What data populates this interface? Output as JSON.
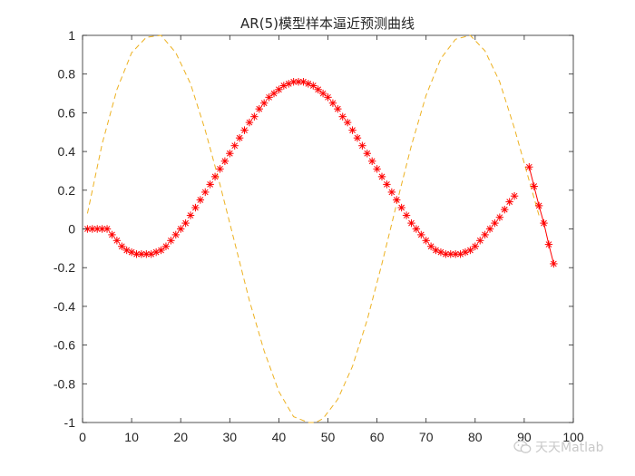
{
  "chart_data": {
    "type": "line",
    "title": "AR(5)模型样本逼近预测曲线",
    "xlabel": "",
    "ylabel": "",
    "xlim": [
      0,
      100
    ],
    "ylim": [
      -1,
      1
    ],
    "xticks": [
      0,
      10,
      20,
      30,
      40,
      50,
      60,
      70,
      80,
      90,
      100
    ],
    "yticks": [
      -1,
      -0.8,
      -0.6,
      -0.4,
      -0.2,
      0,
      0.2,
      0.4,
      0.6,
      0.8,
      1
    ],
    "ytick_labels": [
      "-1",
      "-0.8",
      "-0.6",
      "-0.4",
      "-0.2",
      "0",
      "0.2",
      "0.4",
      "0.6",
      "0.8",
      "1"
    ],
    "grid": false,
    "series": [
      {
        "style": "dashed-line",
        "color": "#EDB120",
        "x": [
          1,
          4,
          7,
          10,
          13,
          16,
          19,
          22,
          25,
          28,
          31,
          34,
          37,
          40,
          43,
          46,
          47.5,
          49,
          52,
          55,
          58,
          61,
          64,
          67,
          70,
          73,
          76,
          79,
          82,
          85,
          88,
          91,
          93
        ],
        "y": [
          0.08,
          0.44,
          0.72,
          0.91,
          0.99,
          1.0,
          0.91,
          0.75,
          0.51,
          0.23,
          -0.07,
          -0.37,
          -0.63,
          -0.84,
          -0.97,
          -1.0,
          -1.0,
          -0.98,
          -0.88,
          -0.71,
          -0.47,
          -0.18,
          0.13,
          0.43,
          0.69,
          0.88,
          0.98,
          1.0,
          0.92,
          0.76,
          0.52,
          0.25,
          0.07
        ]
      },
      {
        "style": "star-markers",
        "color": "#FF0000",
        "x": [
          1,
          2,
          3,
          4,
          5,
          6,
          7,
          8,
          9,
          10,
          11,
          12,
          13,
          14,
          15,
          16,
          17,
          18,
          19,
          20,
          21,
          22,
          23,
          24,
          25,
          26,
          27,
          28,
          29,
          30,
          31,
          32,
          33,
          34,
          35,
          36,
          37,
          38,
          39,
          40,
          41,
          42,
          43,
          44,
          45,
          46,
          47,
          48,
          49,
          50,
          51,
          52,
          53,
          54,
          55,
          56,
          57,
          58,
          59,
          60,
          61,
          62,
          63,
          64,
          65,
          66,
          67,
          68,
          69,
          70,
          71,
          72,
          73,
          74,
          75,
          76,
          77,
          78,
          79,
          80,
          81,
          82,
          83,
          84,
          85,
          86,
          87,
          88
        ],
        "y": [
          0,
          0,
          0,
          0,
          0,
          -0.03,
          -0.06,
          -0.09,
          -0.11,
          -0.12,
          -0.13,
          -0.13,
          -0.13,
          -0.13,
          -0.12,
          -0.11,
          -0.09,
          -0.06,
          -0.03,
          0,
          0.03,
          0.07,
          0.11,
          0.15,
          0.19,
          0.23,
          0.27,
          0.31,
          0.35,
          0.39,
          0.43,
          0.47,
          0.51,
          0.55,
          0.58,
          0.62,
          0.65,
          0.68,
          0.7,
          0.72,
          0.74,
          0.75,
          0.76,
          0.76,
          0.76,
          0.75,
          0.74,
          0.72,
          0.7,
          0.68,
          0.65,
          0.62,
          0.58,
          0.55,
          0.51,
          0.47,
          0.43,
          0.39,
          0.35,
          0.31,
          0.27,
          0.23,
          0.19,
          0.15,
          0.11,
          0.07,
          0.03,
          0,
          -0.03,
          -0.06,
          -0.09,
          -0.11,
          -0.12,
          -0.13,
          -0.13,
          -0.13,
          -0.13,
          -0.12,
          -0.11,
          -0.09,
          -0.06,
          -0.03,
          0,
          0.03,
          0.06,
          0.1,
          0.14,
          0.17
        ]
      },
      {
        "style": "solid-line-star-markers",
        "color": "#FF0000",
        "x": [
          91,
          92,
          93,
          94,
          95,
          96
        ],
        "y": [
          0.32,
          0.22,
          0.12,
          0.03,
          -0.08,
          -0.18
        ]
      }
    ]
  },
  "watermark": {
    "text": "天天Matlab",
    "icon": "wechat-icon"
  }
}
